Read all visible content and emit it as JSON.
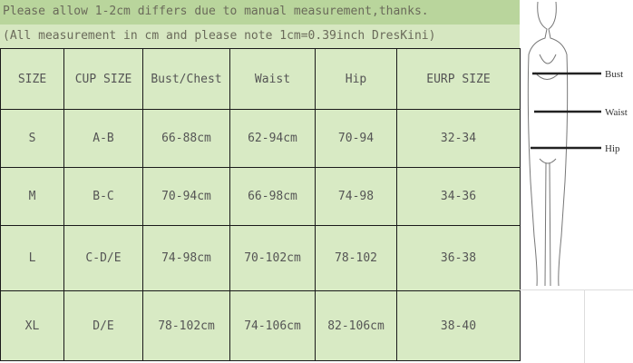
{
  "notes": {
    "line1": "Please allow 1-2cm differs due to manual measurement,thanks.",
    "line2": "(All measurement in cm and please note 1cm=0.39inch DresKini)"
  },
  "headers": [
    "SIZE",
    "CUP SIZE",
    "Bust/Chest",
    "Waist",
    "Hip",
    "EURP SIZE"
  ],
  "rows": [
    [
      "S",
      "A-B",
      "66-88cm",
      "62-94cm",
      "70-94",
      "32-34"
    ],
    [
      "M",
      "B-C",
      "70-94cm",
      "66-98cm",
      "74-98",
      "34-36"
    ],
    [
      "L",
      "C-D/E",
      "74-98cm",
      "70-102cm",
      "78-102",
      "36-38"
    ],
    [
      "XL",
      "D/E",
      "78-102cm",
      "74-106cm",
      "82-106cm",
      "38-40"
    ]
  ],
  "figure": {
    "labels": [
      "Bust",
      "Waist",
      "Hip"
    ]
  }
}
